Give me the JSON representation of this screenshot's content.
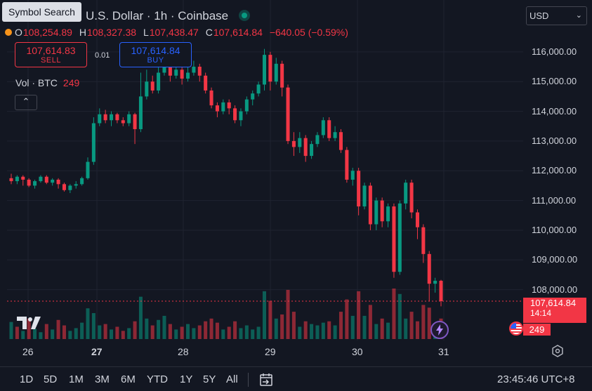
{
  "header": {
    "symbol_search_tooltip": "Symbol Search",
    "title": "U.S. Dollar · 1h · Coinbase",
    "ohlc": {
      "o_label": "O",
      "o": "108,254.89",
      "h_label": "H",
      "h": "108,327.38",
      "l_label": "L",
      "l": "107,438.47",
      "c_label": "C",
      "c": "107,614.84",
      "change": "−640.05 (−0.59%)"
    },
    "sell": {
      "price": "107,614.83",
      "label": "SELL"
    },
    "buy": {
      "price": "107,614.84",
      "label": "BUY"
    },
    "spread": "0.01",
    "volume": {
      "label": "Vol · BTC",
      "value": "249"
    },
    "collapse_icon": "chevron-up-icon",
    "currency": "USD"
  },
  "price_axis": {
    "labels": [
      "116,000.00",
      "115,000.00",
      "114,000.00",
      "113,000.00",
      "112,000.00",
      "111,000.00",
      "110,000.00",
      "109,000.00",
      "108,000.00"
    ],
    "current_price": "107,614.84",
    "countdown": "14:14",
    "volume_badge": "249"
  },
  "time_axis": {
    "labels": [
      {
        "text": "26",
        "bold": false
      },
      {
        "text": "27",
        "bold": true
      },
      {
        "text": "28",
        "bold": false
      },
      {
        "text": "29",
        "bold": false
      },
      {
        "text": "30",
        "bold": false
      },
      {
        "text": "31",
        "bold": false
      }
    ]
  },
  "bottom_bar": {
    "ranges": [
      "1D",
      "5D",
      "1M",
      "3M",
      "6M",
      "YTD",
      "1Y",
      "5Y",
      "All"
    ],
    "clock": "23:45:46 UTC+8"
  },
  "colors": {
    "up": "#089981",
    "down": "#f23645",
    "bg": "#131722",
    "grid": "#1f2330"
  },
  "chart_data": {
    "type": "candlestick",
    "y_range": [
      107000,
      116800
    ],
    "series": [
      {
        "o": 111750,
        "c": 111650,
        "h": 111900,
        "l": 111550
      },
      {
        "o": 111650,
        "c": 111800,
        "h": 111850,
        "l": 111550
      },
      {
        "o": 111800,
        "c": 111700,
        "h": 111850,
        "l": 111500
      },
      {
        "o": 111700,
        "c": 111500,
        "h": 111750,
        "l": 111450
      },
      {
        "o": 111500,
        "c": 111650,
        "h": 111700,
        "l": 111400
      },
      {
        "o": 111650,
        "c": 111800,
        "h": 111850,
        "l": 111600
      },
      {
        "o": 111800,
        "c": 111600,
        "h": 111850,
        "l": 111550
      },
      {
        "o": 111600,
        "c": 111700,
        "h": 111750,
        "l": 111500
      },
      {
        "o": 111700,
        "c": 111550,
        "h": 111750,
        "l": 111400
      },
      {
        "o": 111550,
        "c": 111350,
        "h": 111600,
        "l": 111300
      },
      {
        "o": 111350,
        "c": 111500,
        "h": 111550,
        "l": 111250
      },
      {
        "o": 111500,
        "c": 111550,
        "h": 111650,
        "l": 111400
      },
      {
        "o": 111550,
        "c": 111750,
        "h": 111800,
        "l": 111500
      },
      {
        "o": 111750,
        "c": 112300,
        "h": 112450,
        "l": 111700
      },
      {
        "o": 112300,
        "c": 113600,
        "h": 113800,
        "l": 112200
      },
      {
        "o": 113600,
        "c": 113900,
        "h": 114100,
        "l": 113500
      },
      {
        "o": 113900,
        "c": 113700,
        "h": 114050,
        "l": 113600
      },
      {
        "o": 113700,
        "c": 113900,
        "h": 114000,
        "l": 113500
      },
      {
        "o": 113900,
        "c": 113700,
        "h": 113950,
        "l": 113600
      },
      {
        "o": 113700,
        "c": 113600,
        "h": 113800,
        "l": 113500
      },
      {
        "o": 113600,
        "c": 113900,
        "h": 114000,
        "l": 113500
      },
      {
        "o": 113900,
        "c": 113400,
        "h": 113950,
        "l": 112900
      },
      {
        "o": 113400,
        "c": 114500,
        "h": 115300,
        "l": 113300
      },
      {
        "o": 114500,
        "c": 115000,
        "h": 115400,
        "l": 114400
      },
      {
        "o": 115000,
        "c": 114700,
        "h": 115200,
        "l": 114600
      },
      {
        "o": 114700,
        "c": 115300,
        "h": 115500,
        "l": 114600
      },
      {
        "o": 115300,
        "c": 115600,
        "h": 115900,
        "l": 115200
      },
      {
        "o": 115600,
        "c": 115200,
        "h": 115700,
        "l": 115000
      },
      {
        "o": 115200,
        "c": 115400,
        "h": 115600,
        "l": 115100
      },
      {
        "o": 115400,
        "c": 115100,
        "h": 115500,
        "l": 114900
      },
      {
        "o": 115100,
        "c": 115300,
        "h": 115600,
        "l": 115000
      },
      {
        "o": 115300,
        "c": 115500,
        "h": 115700,
        "l": 115200
      },
      {
        "o": 115500,
        "c": 115200,
        "h": 115600,
        "l": 115000
      },
      {
        "o": 115200,
        "c": 114700,
        "h": 115300,
        "l": 114600
      },
      {
        "o": 114700,
        "c": 114200,
        "h": 114800,
        "l": 114100
      },
      {
        "o": 114200,
        "c": 114000,
        "h": 114300,
        "l": 113800
      },
      {
        "o": 114000,
        "c": 114300,
        "h": 114400,
        "l": 113900
      },
      {
        "o": 114300,
        "c": 114100,
        "h": 114400,
        "l": 113900
      },
      {
        "o": 114100,
        "c": 113700,
        "h": 114200,
        "l": 113600
      },
      {
        "o": 113700,
        "c": 114000,
        "h": 114100,
        "l": 113500
      },
      {
        "o": 114000,
        "c": 114400,
        "h": 114500,
        "l": 113900
      },
      {
        "o": 114400,
        "c": 114600,
        "h": 114700,
        "l": 114200
      },
      {
        "o": 114600,
        "c": 114900,
        "h": 115000,
        "l": 114500
      },
      {
        "o": 114900,
        "c": 115900,
        "h": 116100,
        "l": 114700
      },
      {
        "o": 115900,
        "c": 115000,
        "h": 116000,
        "l": 114700
      },
      {
        "o": 115000,
        "c": 115600,
        "h": 115800,
        "l": 114900
      },
      {
        "o": 115600,
        "c": 114800,
        "h": 115700,
        "l": 114500
      },
      {
        "o": 114800,
        "c": 113000,
        "h": 114900,
        "l": 112900
      },
      {
        "o": 113000,
        "c": 112800,
        "h": 113300,
        "l": 112500
      },
      {
        "o": 112800,
        "c": 113100,
        "h": 113300,
        "l": 112600
      },
      {
        "o": 113100,
        "c": 112500,
        "h": 113200,
        "l": 112300
      },
      {
        "o": 112500,
        "c": 112900,
        "h": 113000,
        "l": 112400
      },
      {
        "o": 112900,
        "c": 113200,
        "h": 113300,
        "l": 112800
      },
      {
        "o": 113200,
        "c": 113700,
        "h": 113800,
        "l": 113100
      },
      {
        "o": 113700,
        "c": 113100,
        "h": 113800,
        "l": 113000
      },
      {
        "o": 113100,
        "c": 113300,
        "h": 113500,
        "l": 113000
      },
      {
        "o": 113300,
        "c": 112700,
        "h": 113400,
        "l": 112600
      },
      {
        "o": 112700,
        "c": 111700,
        "h": 112800,
        "l": 111600
      },
      {
        "o": 111700,
        "c": 112000,
        "h": 112100,
        "l": 111500
      },
      {
        "o": 112000,
        "c": 110800,
        "h": 112100,
        "l": 110500
      },
      {
        "o": 110800,
        "c": 111500,
        "h": 111600,
        "l": 110700
      },
      {
        "o": 111500,
        "c": 110200,
        "h": 111600,
        "l": 110000
      },
      {
        "o": 110200,
        "c": 111000,
        "h": 111100,
        "l": 110000
      },
      {
        "o": 111000,
        "c": 110300,
        "h": 111100,
        "l": 110100
      },
      {
        "o": 110300,
        "c": 110800,
        "h": 110900,
        "l": 110100
      },
      {
        "o": 110800,
        "c": 108600,
        "h": 110900,
        "l": 108400
      },
      {
        "o": 108600,
        "c": 110900,
        "h": 111000,
        "l": 108500
      },
      {
        "o": 110900,
        "c": 111600,
        "h": 111700,
        "l": 110700
      },
      {
        "o": 111600,
        "c": 110600,
        "h": 111700,
        "l": 110400
      },
      {
        "o": 110600,
        "c": 110100,
        "h": 110700,
        "l": 109700
      },
      {
        "o": 110100,
        "c": 109200,
        "h": 110200,
        "l": 108900
      },
      {
        "o": 109200,
        "c": 108200,
        "h": 109300,
        "l": 107600
      },
      {
        "o": 108200,
        "c": 108300,
        "h": 108400,
        "l": 107900
      },
      {
        "o": 108300,
        "c": 107615,
        "h": 108330,
        "l": 107440
      }
    ],
    "volume": [
      {
        "v": 25,
        "up": true
      },
      {
        "v": 18,
        "up": false
      },
      {
        "v": 12,
        "up": true
      },
      {
        "v": 30,
        "up": false
      },
      {
        "v": 15,
        "up": true
      },
      {
        "v": 10,
        "up": true
      },
      {
        "v": 22,
        "up": false
      },
      {
        "v": 14,
        "up": true
      },
      {
        "v": 28,
        "up": false
      },
      {
        "v": 20,
        "up": false
      },
      {
        "v": 12,
        "up": true
      },
      {
        "v": 16,
        "up": true
      },
      {
        "v": 24,
        "up": true
      },
      {
        "v": 45,
        "up": true
      },
      {
        "v": 38,
        "up": true
      },
      {
        "v": 20,
        "up": true
      },
      {
        "v": 22,
        "up": false
      },
      {
        "v": 14,
        "up": true
      },
      {
        "v": 18,
        "up": false
      },
      {
        "v": 12,
        "up": false
      },
      {
        "v": 16,
        "up": true
      },
      {
        "v": 26,
        "up": false
      },
      {
        "v": 62,
        "up": true
      },
      {
        "v": 30,
        "up": true
      },
      {
        "v": 20,
        "up": false
      },
      {
        "v": 28,
        "up": true
      },
      {
        "v": 34,
        "up": true
      },
      {
        "v": 22,
        "up": false
      },
      {
        "v": 14,
        "up": true
      },
      {
        "v": 18,
        "up": false
      },
      {
        "v": 22,
        "up": true
      },
      {
        "v": 16,
        "up": true
      },
      {
        "v": 20,
        "up": false
      },
      {
        "v": 26,
        "up": false
      },
      {
        "v": 30,
        "up": false
      },
      {
        "v": 24,
        "up": false
      },
      {
        "v": 14,
        "up": true
      },
      {
        "v": 18,
        "up": false
      },
      {
        "v": 26,
        "up": false
      },
      {
        "v": 16,
        "up": true
      },
      {
        "v": 20,
        "up": true
      },
      {
        "v": 14,
        "up": true
      },
      {
        "v": 18,
        "up": true
      },
      {
        "v": 70,
        "up": true
      },
      {
        "v": 56,
        "up": false
      },
      {
        "v": 30,
        "up": true
      },
      {
        "v": 36,
        "up": false
      },
      {
        "v": 72,
        "up": false
      },
      {
        "v": 40,
        "up": false
      },
      {
        "v": 18,
        "up": true
      },
      {
        "v": 26,
        "up": false
      },
      {
        "v": 22,
        "up": true
      },
      {
        "v": 20,
        "up": true
      },
      {
        "v": 24,
        "up": true
      },
      {
        "v": 26,
        "up": false
      },
      {
        "v": 20,
        "up": true
      },
      {
        "v": 40,
        "up": false
      },
      {
        "v": 58,
        "up": false
      },
      {
        "v": 34,
        "up": true
      },
      {
        "v": 70,
        "up": false
      },
      {
        "v": 34,
        "up": true
      },
      {
        "v": 50,
        "up": false
      },
      {
        "v": 22,
        "up": true
      },
      {
        "v": 30,
        "up": false
      },
      {
        "v": 24,
        "up": true
      },
      {
        "v": 74,
        "up": false
      },
      {
        "v": 66,
        "up": true
      },
      {
        "v": 30,
        "up": true
      },
      {
        "v": 40,
        "up": false
      },
      {
        "v": 26,
        "up": false
      },
      {
        "v": 50,
        "up": false
      },
      {
        "v": 46,
        "up": false
      },
      {
        "v": 20,
        "up": true
      },
      {
        "v": 30,
        "up": false
      }
    ]
  }
}
